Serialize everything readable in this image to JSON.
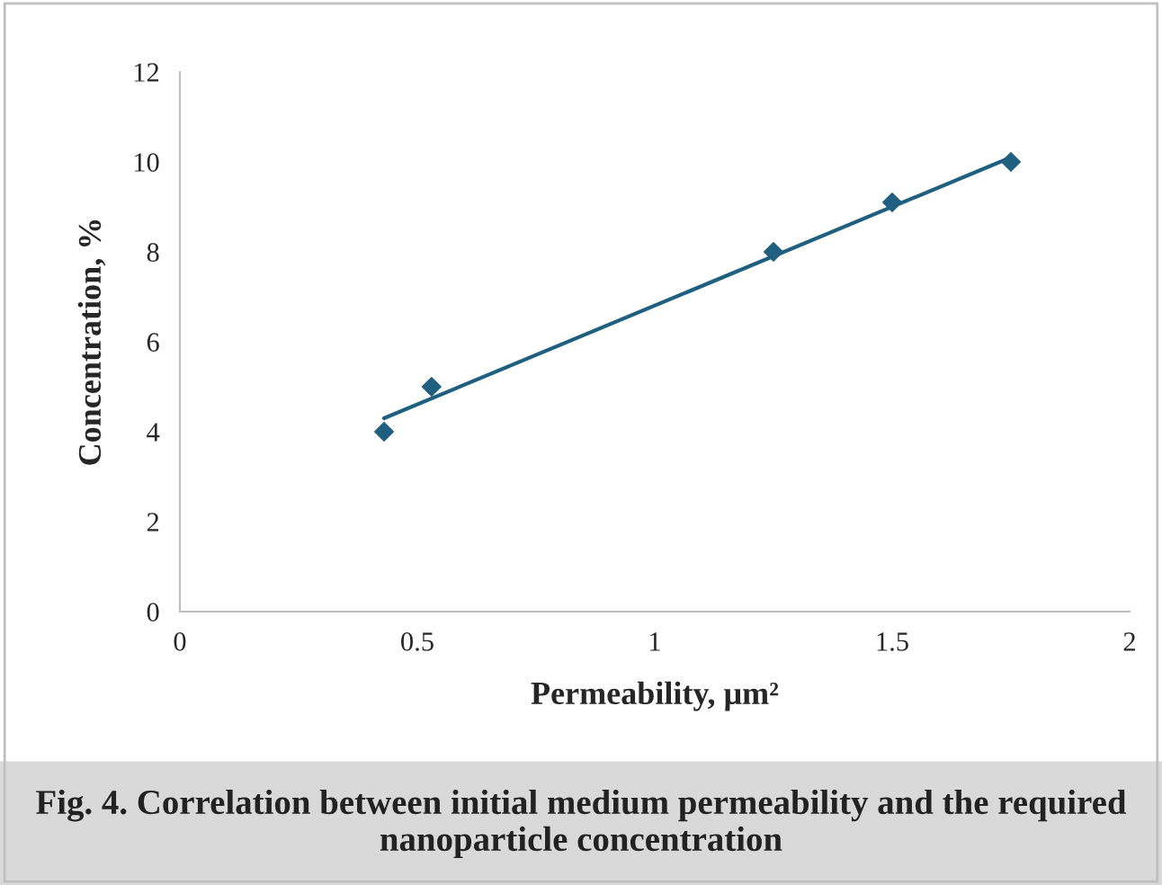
{
  "chart_data": {
    "type": "scatter",
    "xlabel": "Permeability, μm²",
    "ylabel": "Concentration, %",
    "annotations": [
      "Fig. 4. Correlation between initial medium permeability and the required nanoparticle concentration"
    ],
    "series": [
      {
        "color": "#1f5f7f",
        "marker": "diamond",
        "x": [
          0.43,
          0.53,
          1.25,
          1.5,
          1.75
        ],
        "values": [
          4,
          5,
          8,
          9.1,
          10
        ]
      },
      {
        "type": "line",
        "color": "#1f5f7f",
        "marker": "none",
        "line_style": "solid",
        "x": [
          0.43,
          1.75
        ],
        "values": [
          4.3,
          10.1
        ]
      }
    ],
    "xlim": [
      0,
      2
    ],
    "xticks": [
      0,
      0.5,
      1,
      1.5,
      2
    ],
    "ylim": [
      0,
      12
    ],
    "yticks": [
      0,
      2,
      4,
      6,
      8,
      10,
      12
    ],
    "grid": false,
    "legend": false
  }
}
